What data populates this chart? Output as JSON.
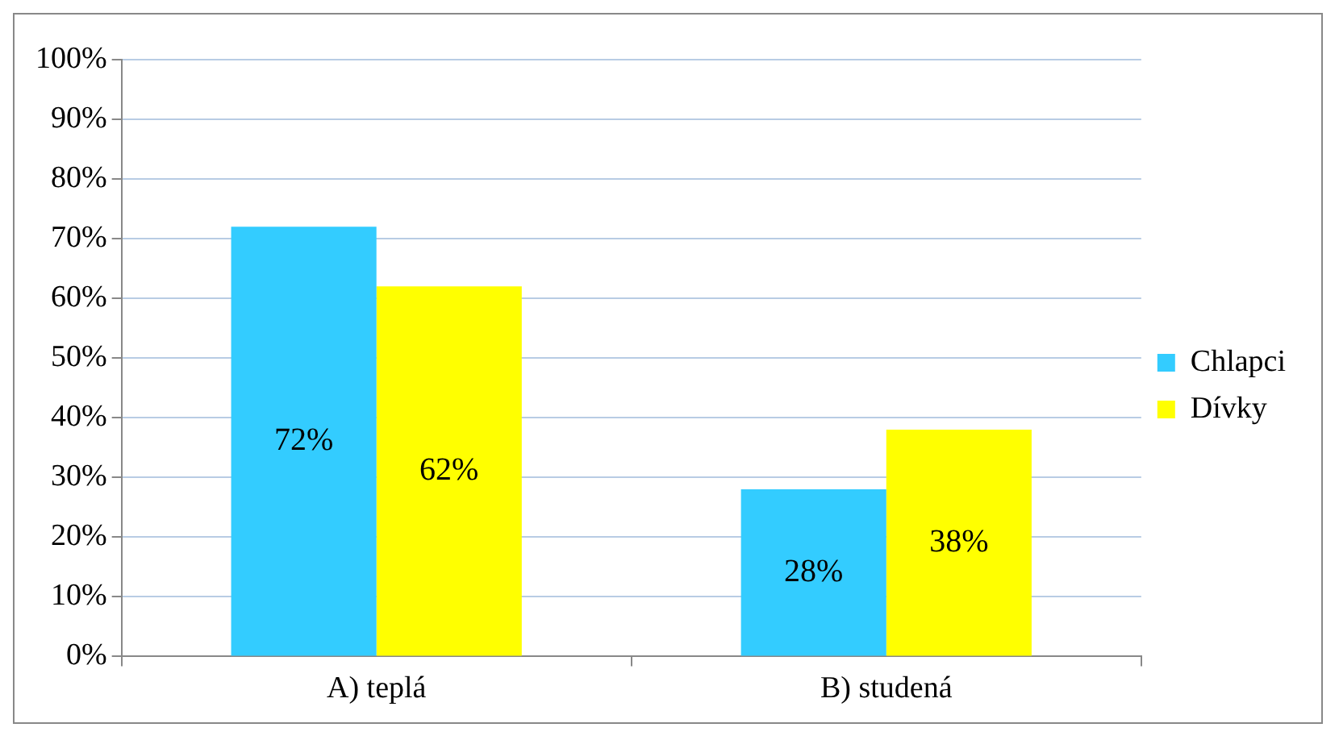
{
  "chart_data": {
    "type": "bar",
    "categories": [
      "A) teplá",
      "B) studená"
    ],
    "series": [
      {
        "name": "Chlapci",
        "color": "#33ccff",
        "values": [
          72,
          28
        ],
        "value_labels": [
          "72%",
          "28%"
        ]
      },
      {
        "name": "Dívky",
        "color": "#ffff00",
        "values": [
          62,
          38
        ],
        "value_labels": [
          "62%",
          "38%"
        ]
      }
    ],
    "ylim": [
      0,
      100
    ],
    "yticks": [
      {
        "value": 0,
        "label": "0%"
      },
      {
        "value": 10,
        "label": "10%"
      },
      {
        "value": 20,
        "label": "20%"
      },
      {
        "value": 30,
        "label": "30%"
      },
      {
        "value": 40,
        "label": "40%"
      },
      {
        "value": 50,
        "label": "50%"
      },
      {
        "value": 60,
        "label": "60%"
      },
      {
        "value": 70,
        "label": "70%"
      },
      {
        "value": 80,
        "label": "80%"
      },
      {
        "value": 90,
        "label": "90%"
      },
      {
        "value": 100,
        "label": "100%"
      }
    ],
    "grid": "y",
    "legend": "right"
  }
}
